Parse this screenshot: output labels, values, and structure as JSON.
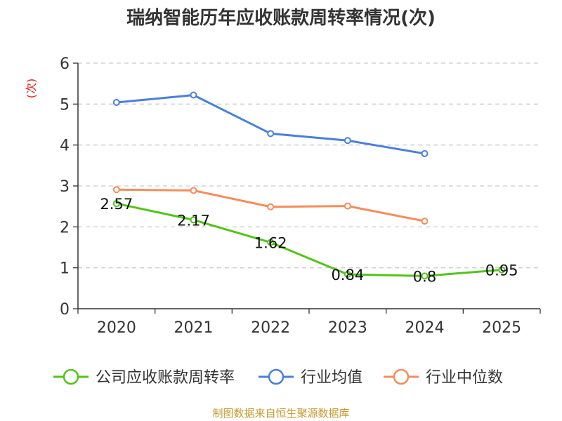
{
  "chart_data": {
    "type": "line",
    "title": "瑞纳智能历年应收账款周转率情况(次)",
    "ylabel": "(次)",
    "xlabel": "",
    "ylim": [
      0,
      6
    ],
    "yticks": [
      "0",
      "1",
      "2",
      "3",
      "4",
      "5",
      "6"
    ],
    "categories": [
      "2020",
      "2021",
      "2022",
      "2023",
      "2024",
      "2025"
    ],
    "grid": true,
    "legend_position": "bottom",
    "series": [
      {
        "name": "公司应收账款周转率",
        "color": "#52c41a",
        "values": [
          2.57,
          2.17,
          1.62,
          0.84,
          0.8,
          0.95
        ],
        "labels": [
          "2.57",
          "2.17",
          "1.62",
          "0.84",
          "0.8",
          "0.95"
        ]
      },
      {
        "name": "行业均值",
        "color": "#4a7fdc",
        "values": [
          5.04,
          5.22,
          4.28,
          4.11,
          3.79,
          null
        ]
      },
      {
        "name": "行业中位数",
        "color": "#f68c5a",
        "values": [
          2.91,
          2.89,
          2.49,
          2.51,
          2.14,
          null
        ]
      }
    ],
    "source": "制图数据来自恒生聚源数据库"
  }
}
